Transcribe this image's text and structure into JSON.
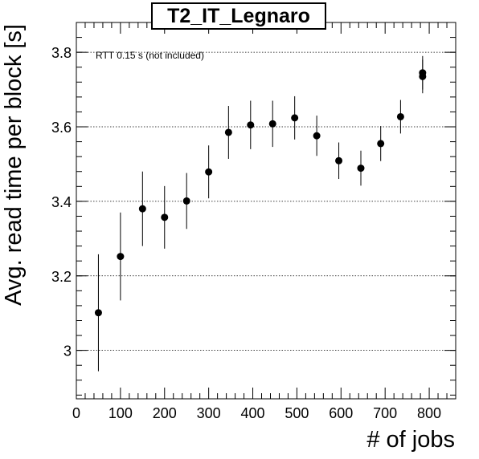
{
  "chart_data": {
    "type": "scatter",
    "title": "T2_IT_Legnaro",
    "xlabel": "# of jobs",
    "ylabel": "Avg. read time per block [s]",
    "annotation": "RTT 0.15 s (not included)",
    "xlim": [
      0,
      860
    ],
    "ylim": [
      2.87,
      3.88
    ],
    "xticks": [
      0,
      100,
      200,
      300,
      400,
      500,
      600,
      700,
      800
    ],
    "yticks": [
      3,
      3.2,
      3.4,
      3.6,
      3.8
    ],
    "ytick_labels": [
      "3",
      "3.2",
      "3.4",
      "3.6",
      "3.8"
    ],
    "grid": "horizontal dotted",
    "points": [
      {
        "x": 50,
        "y": 3.101,
        "err": 0.157
      },
      {
        "x": 100,
        "y": 3.252,
        "err": 0.118
      },
      {
        "x": 150,
        "y": 3.38,
        "err": 0.1
      },
      {
        "x": 200,
        "y": 3.357,
        "err": 0.084
      },
      {
        "x": 250,
        "y": 3.401,
        "err": 0.075
      },
      {
        "x": 300,
        "y": 3.479,
        "err": 0.071
      },
      {
        "x": 345,
        "y": 3.585,
        "err": 0.071
      },
      {
        "x": 395,
        "y": 3.605,
        "err": 0.065
      },
      {
        "x": 445,
        "y": 3.608,
        "err": 0.062
      },
      {
        "x": 495,
        "y": 3.624,
        "err": 0.058
      },
      {
        "x": 545,
        "y": 3.576,
        "err": 0.054
      },
      {
        "x": 595,
        "y": 3.509,
        "err": 0.049
      },
      {
        "x": 645,
        "y": 3.489,
        "err": 0.047
      },
      {
        "x": 690,
        "y": 3.555,
        "err": 0.047
      },
      {
        "x": 735,
        "y": 3.627,
        "err": 0.045
      },
      {
        "x": 785,
        "y": 3.745,
        "err": 0.045
      },
      {
        "x": 785,
        "y": 3.735,
        "err": 0.045
      }
    ]
  }
}
